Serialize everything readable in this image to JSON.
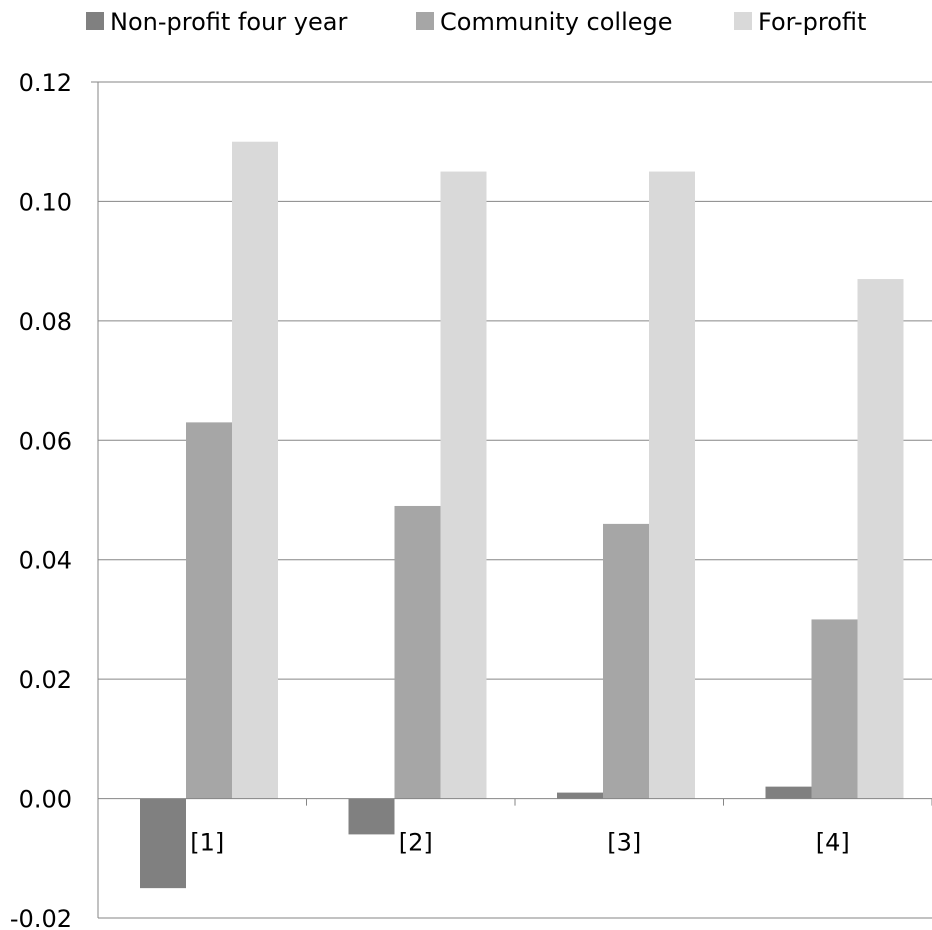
{
  "chart_data": {
    "type": "bar",
    "categories": [
      "[1]",
      "[2]",
      "[3]",
      "[4]"
    ],
    "series": [
      {
        "name": "Non-profit four year",
        "color": "#808080",
        "values": [
          -0.015,
          -0.006,
          0.001,
          0.002
        ]
      },
      {
        "name": "Community college",
        "color": "#a6a6a6",
        "values": [
          0.063,
          0.049,
          0.046,
          0.03
        ]
      },
      {
        "name": "For-profit",
        "color": "#d9d9d9",
        "values": [
          0.11,
          0.105,
          0.105,
          0.087
        ]
      }
    ],
    "ylim": [
      -0.02,
      0.12
    ],
    "yticks": [
      "-0.02",
      "0.00",
      "0.02",
      "0.04",
      "0.06",
      "0.08",
      "0.10",
      "0.12"
    ],
    "grid": true,
    "gridline_color": "#868686",
    "legend_position": "top",
    "title": "",
    "xlabel": "",
    "ylabel": ""
  }
}
